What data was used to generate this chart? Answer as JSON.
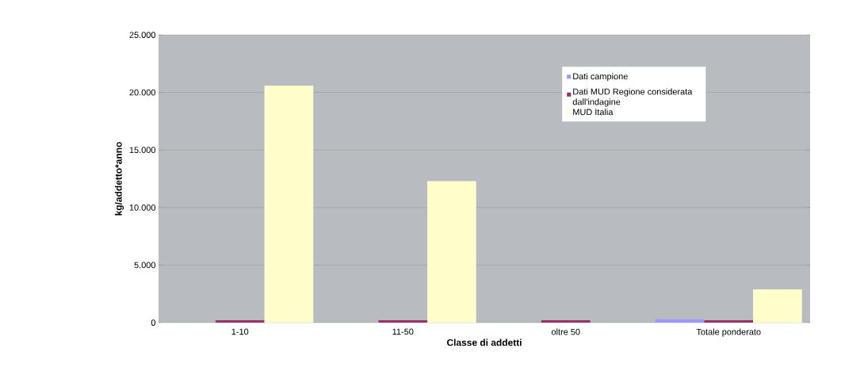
{
  "chart_data": {
    "type": "bar",
    "xlabel": "Classe di addetti",
    "ylabel": "kg/addetto*anno",
    "categories": [
      "1-10",
      "11-50",
      "oltre 50",
      "Totale ponderato"
    ],
    "series": [
      {
        "name": "Dati campione",
        "color": "#9999ff",
        "values": [
          null,
          null,
          null,
          300
        ]
      },
      {
        "name": "Dati MUD Regione considerata dall'indagine",
        "color": "#993366",
        "values": [
          200,
          200,
          200,
          200
        ]
      },
      {
        "name": "MUD Italia",
        "color": "#ffffcc",
        "values": [
          20600,
          12300,
          null,
          2900
        ]
      }
    ],
    "ylim": [
      0,
      25000
    ],
    "yticks": [
      0,
      {
        "value": 5000,
        "label": "5.000"
      },
      {
        "value": 10000,
        "label": "10.000"
      },
      {
        "value": 15000,
        "label": "15.000"
      },
      {
        "value": 20000,
        "label": "20.000"
      },
      {
        "value": 25000,
        "label": "25.000"
      }
    ],
    "grid": "y",
    "legend": "top right"
  }
}
